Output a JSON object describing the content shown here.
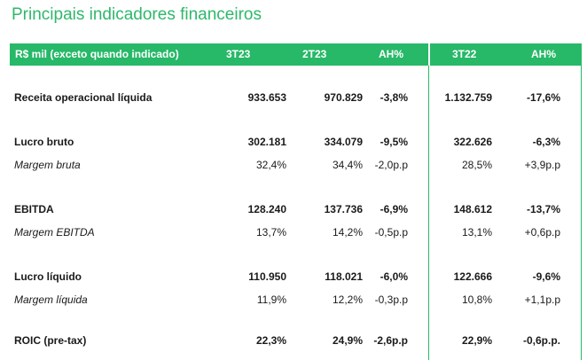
{
  "title": "Principais indicadores financeiros",
  "columns": [
    "R$ mil (exceto quando indicado)",
    "3T23",
    "2T23",
    "AH%",
    "3T22",
    "AH%"
  ],
  "rows": [
    {
      "label": "Receita operacional líquida",
      "values": [
        "933.653",
        "970.829",
        "-3,8%",
        "1.132.759",
        "-17,6%"
      ],
      "style": "bold"
    },
    {
      "label": "Lucro bruto",
      "values": [
        "302.181",
        "334.079",
        "-9,5%",
        "322.626",
        "-6,3%"
      ],
      "style": "bold"
    },
    {
      "label": "Margem bruta",
      "values": [
        "32,4%",
        "34,4%",
        "-2,0p.p",
        "28,5%",
        "+3,9p.p"
      ],
      "style": "italic"
    },
    {
      "label": "EBITDA",
      "values": [
        "128.240",
        "137.736",
        "-6,9%",
        "148.612",
        "-13,7%"
      ],
      "style": "bold"
    },
    {
      "label": "Margem EBITDA",
      "values": [
        "13,7%",
        "14,2%",
        "-0,5p.p",
        "13,1%",
        "+0,6p.p"
      ],
      "style": "italic"
    },
    {
      "label": "Lucro líquido",
      "values": [
        "110.950",
        "118.021",
        "-6,0%",
        "122.666",
        "-9,6%"
      ],
      "style": "bold"
    },
    {
      "label": "Margem líquida",
      "values": [
        "11,9%",
        "12,2%",
        "-0,3p.p",
        "10,8%",
        "+1,1p.p"
      ],
      "style": "italic"
    },
    {
      "label": "ROIC (pre-tax)",
      "values": [
        "22,3%",
        "24,9%",
        "-2,6p.p",
        "22,9%",
        "-0,6p.p."
      ],
      "style": "bold"
    }
  ]
}
